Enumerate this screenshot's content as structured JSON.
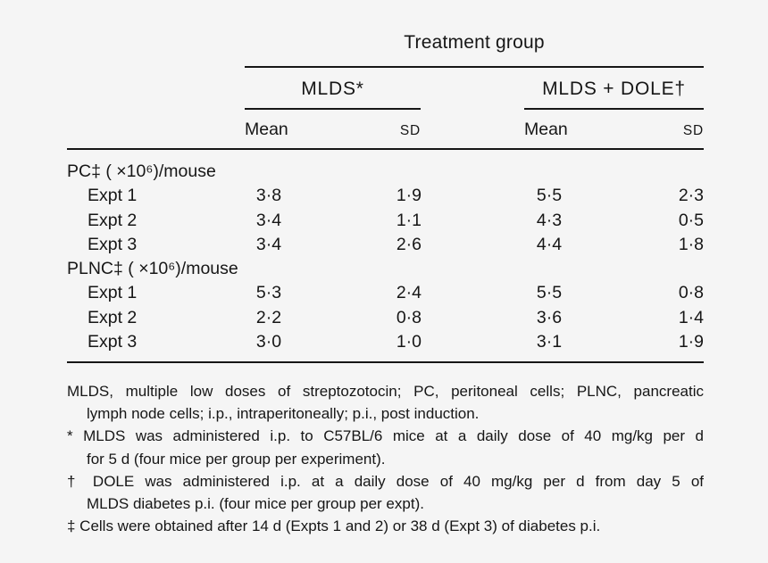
{
  "header": {
    "title": "Treatment group",
    "groups": [
      {
        "label": "MLDS*"
      },
      {
        "label": "MLDS + DOLE†"
      }
    ],
    "columns": [
      {
        "label": "Mean"
      },
      {
        "label": "SD"
      },
      {
        "label": "Mean"
      },
      {
        "label": "SD"
      }
    ]
  },
  "body": {
    "sections": [
      {
        "label": "PC‡ ( ×10⁶)/mouse",
        "rows": [
          {
            "label": "Expt 1",
            "values": [
              "3·8",
              "1·9",
              "5·5",
              "2·3"
            ]
          },
          {
            "label": "Expt 2",
            "values": [
              "3·4",
              "1·1",
              "4·3",
              "0·5"
            ]
          },
          {
            "label": "Expt 3",
            "values": [
              "3·4",
              "2·6",
              "4·4",
              "1·8"
            ]
          }
        ]
      },
      {
        "label": "PLNC‡ ( ×10⁶)/mouse",
        "rows": [
          {
            "label": "Expt 1",
            "values": [
              "5·3",
              "2·4",
              "5·5",
              "0·8"
            ]
          },
          {
            "label": "Expt 2",
            "values": [
              "2·2",
              "0·8",
              "3·6",
              "1·4"
            ]
          },
          {
            "label": "Expt 3",
            "values": [
              "3·0",
              "1·0",
              "3·1",
              "1·9"
            ]
          }
        ]
      }
    ]
  },
  "footnotes": {
    "lines": [
      "MLDS, multiple low doses of streptozotocin; PC, peritoneal cells; PLNC, pancreatic",
      "lymph node cells; i.p., intraperitoneally; p.i., post induction.",
      "* MLDS was administered i.p. to C57BL/6 mice at a daily dose of 40 mg/kg per d",
      "for 5 d (four mice per group per experiment).",
      "† DOLE was administered i.p. at a daily dose of 40 mg/kg per d from day 5 of",
      "MLDS diabetes p.i. (four mice per group per expt).",
      "‡ Cells were obtained after 14 d (Expts 1 and 2) or 38 d (Expt 3) of diabetes p.i."
    ]
  },
  "colors": {
    "background": "#f5f5f5",
    "text": "#161616",
    "rule": "#161616"
  }
}
